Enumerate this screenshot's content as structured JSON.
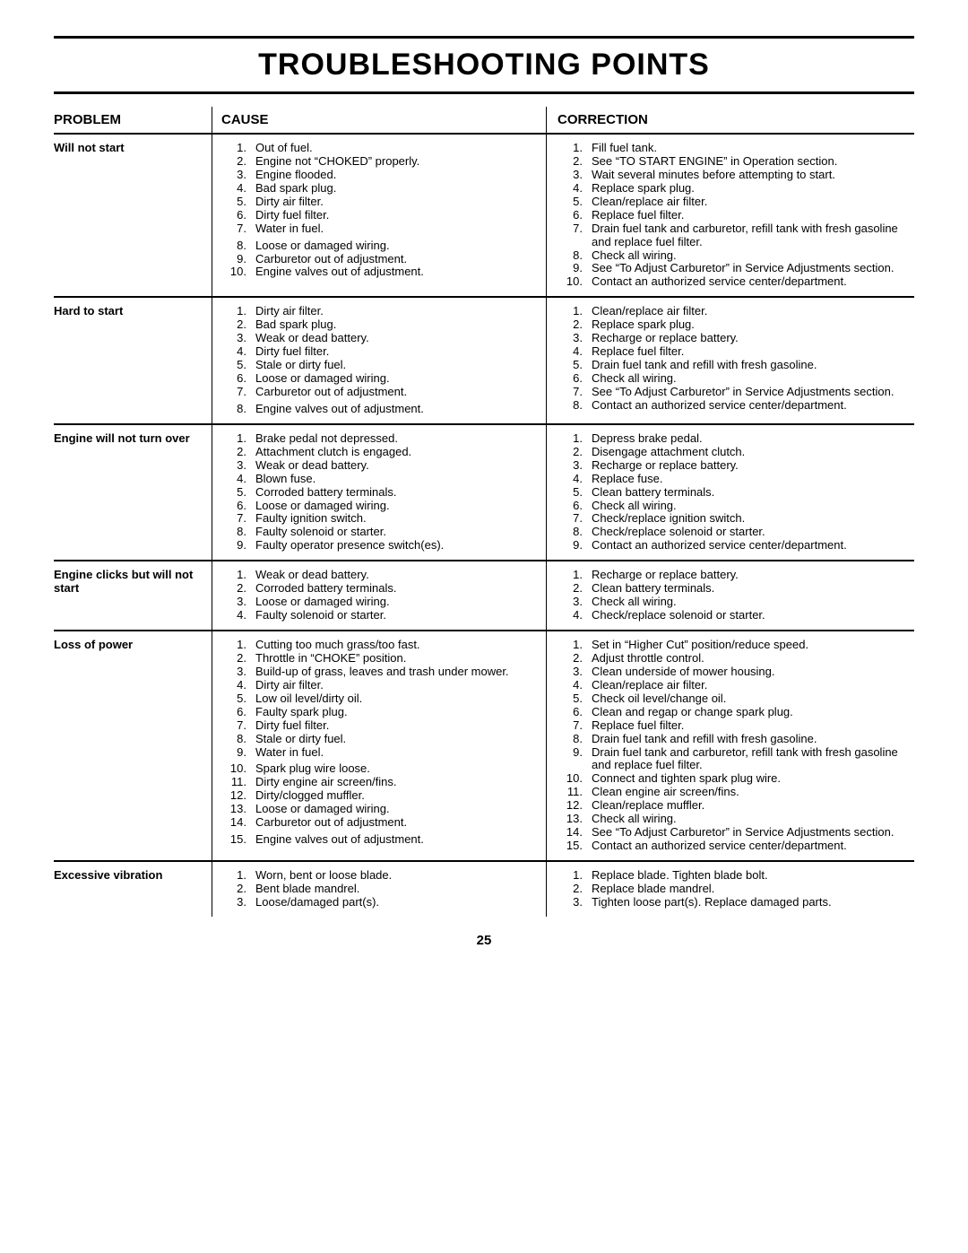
{
  "title": "TROUBLESHOOTING POINTS",
  "page_number": "25",
  "headers": {
    "problem": "PROBLEM",
    "cause": "CAUSE",
    "correction": "CORRECTION"
  },
  "sections": [
    {
      "problem": "Will not start",
      "causes": [
        "Out of fuel.",
        "Engine not “CHOKED” properly.",
        "Engine flooded.",
        "Bad spark plug.",
        "Dirty air filter.",
        "Dirty fuel filter.",
        "Water in fuel.",
        "Loose or damaged wiring.",
        "Carburetor out of adjustment.",
        "Engine valves out of adjustment."
      ],
      "corrections": [
        "Fill fuel tank.",
        "See “TO START ENGINE” in Operation section.",
        "Wait several minutes before attempting to start.",
        "Replace spark plug.",
        "Clean/replace air filter.",
        "Replace fuel filter.",
        "Drain fuel tank and carburetor, refill tank with fresh gasoline and replace fuel filter.",
        "Check all wiring.",
        "See “To Adjust Carburetor” in Service Adjustments section.",
        "Contact an authorized service center/department."
      ],
      "cause_gap_after": [
        7
      ],
      "corr_extra_lines": {
        "7": true,
        "9": true
      }
    },
    {
      "problem": "Hard to start",
      "causes": [
        "Dirty air filter.",
        "Bad spark plug.",
        "Weak or dead battery.",
        "Dirty fuel filter.",
        "Stale or dirty fuel.",
        "Loose or damaged wiring.",
        "Carburetor out of adjustment.",
        "Engine valves out of adjustment."
      ],
      "corrections": [
        "Clean/replace air filter.",
        "Replace spark plug.",
        "Recharge or replace battery.",
        "Replace fuel filter.",
        "Drain fuel tank and refill with fresh gasoline.",
        "Check all wiring.",
        "See “To Adjust Carburetor” in Service Adjustments section.",
        "Contact an authorized service center/department."
      ],
      "cause_gap_after": [
        7
      ],
      "corr_extra_lines": {
        "7": true
      }
    },
    {
      "problem": "Engine will not turn over",
      "causes": [
        "Brake pedal not depressed.",
        "Attachment clutch is engaged.",
        "Weak or dead battery.",
        "Blown fuse.",
        "Corroded battery terminals.",
        "Loose or damaged wiring.",
        "Faulty ignition switch.",
        "Faulty solenoid or starter.",
        "Faulty operator presence switch(es)."
      ],
      "corrections": [
        "Depress brake pedal.",
        "Disengage attachment clutch.",
        "Recharge or replace battery.",
        "Replace fuse.",
        "Clean battery terminals.",
        "Check all wiring.",
        "Check/replace ignition switch.",
        "Check/replace solenoid or starter.",
        "Contact an authorized service center/department."
      ]
    },
    {
      "problem": "Engine clicks but will not start",
      "causes": [
        "Weak or dead battery.",
        "Corroded battery terminals.",
        "Loose or damaged wiring.",
        "Faulty solenoid or starter."
      ],
      "corrections": [
        "Recharge or replace battery.",
        "Clean battery terminals.",
        "Check all wiring.",
        "Check/replace solenoid or starter."
      ]
    },
    {
      "problem": "Loss of power",
      "causes": [
        "Cutting too much grass/too fast.",
        "Throttle in “CHOKE” position.",
        "Build-up of grass, leaves and trash under mower.",
        "Dirty air filter.",
        "Low oil level/dirty oil.",
        "Faulty spark plug.",
        "Dirty fuel filter.",
        "Stale or dirty fuel.",
        "Water in fuel.",
        "Spark plug wire loose.",
        "Dirty engine air screen/fins.",
        "Dirty/clogged muffler.",
        "Loose or damaged wiring.",
        "Carburetor out of adjustment.",
        "Engine valves out of adjustment."
      ],
      "corrections": [
        "Set in “Higher Cut” position/reduce speed.",
        "Adjust throttle control.",
        "Clean underside of mower housing.",
        "Clean/replace air filter.",
        "Check oil level/change oil.",
        "Clean and regap or change spark plug.",
        "Replace fuel filter.",
        "Drain fuel tank and refill with fresh gasoline.",
        "Drain fuel tank and carburetor, refill tank with fresh gasoline and replace fuel filter.",
        "Connect and tighten spark plug wire.",
        "Clean engine air screen/fins.",
        "Clean/replace muffler.",
        "Check all wiring.",
        "See “To Adjust Carburetor” in Service Adjustments section.",
        "Contact an authorized service center/department."
      ],
      "cause_gap_after": [
        9,
        14
      ],
      "corr_extra_lines": {
        "9": true,
        "14": true
      }
    },
    {
      "problem": "Excessive vibration",
      "causes": [
        "Worn, bent or loose blade.",
        "Bent blade mandrel.",
        "Loose/damaged part(s)."
      ],
      "corrections": [
        "Replace blade.  Tighten blade bolt.",
        "Replace blade mandrel.",
        "Tighten loose part(s).  Replace damaged parts."
      ]
    }
  ]
}
